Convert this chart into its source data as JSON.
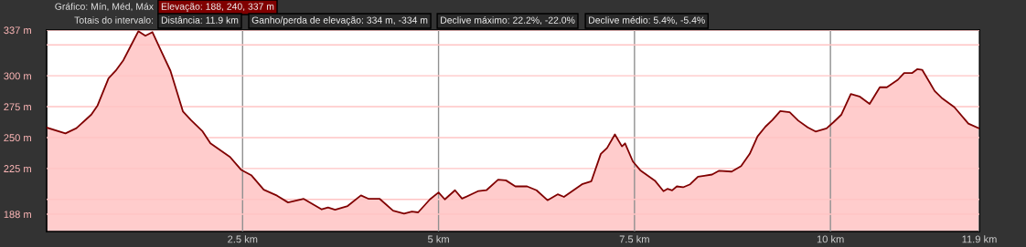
{
  "chart_data": {
    "type": "area",
    "annotations": [
      "Gráfico: Mín, Méd, Máx",
      "Elevação: 188, 240, 337 m",
      "Totais do intervalo:",
      "Distância: 11.9 km",
      "Ganho/perda de elevação: 334 m, -334 m",
      "Declive máximo: 22.2%, -22.0%",
      "Declive médio: 5.4%, -5.4%"
    ],
    "grid": true,
    "xlim": [
      0,
      11.9
    ],
    "ylim": [
      174,
      337
    ],
    "xticks": [
      {
        "value": 2.5,
        "label": "2.5 km"
      },
      {
        "value": 5,
        "label": "5 km"
      },
      {
        "value": 7.5,
        "label": "7.5 km"
      },
      {
        "value": 10,
        "label": "10 km"
      },
      {
        "value": 11.9,
        "label": "11.9 km"
      }
    ],
    "yticks": [
      {
        "value": 188,
        "label": "188 m"
      },
      {
        "value": 200,
        "label": null
      },
      {
        "value": 225,
        "label": "225 m"
      },
      {
        "value": 250,
        "label": "250 m"
      },
      {
        "value": 275,
        "label": "275 m"
      },
      {
        "value": 300,
        "label": "300 m"
      },
      {
        "value": 325,
        "label": null
      },
      {
        "value": 337,
        "label": "337 m"
      }
    ],
    "x": [
      0,
      0.24,
      0.38,
      0.57,
      0.65,
      0.79,
      0.88,
      0.98,
      1.08,
      1.17,
      1.26,
      1.35,
      1.47,
      1.58,
      1.74,
      1.84,
      1.99,
      2.09,
      2.34,
      2.48,
      2.61,
      2.77,
      2.94,
      3.08,
      3.28,
      3.51,
      3.59,
      3.68,
      3.84,
      4.01,
      4.11,
      4.25,
      4.42,
      4.56,
      4.66,
      4.74,
      4.89,
      5.0,
      5.08,
      5.21,
      5.3,
      5.51,
      5.61,
      5.76,
      5.86,
      5.98,
      6.13,
      6.25,
      6.39,
      6.52,
      6.6,
      6.83,
      6.95,
      7.07,
      7.15,
      7.25,
      7.34,
      7.38,
      7.48,
      7.58,
      7.76,
      7.87,
      7.92,
      7.98,
      8.04,
      8.12,
      8.21,
      8.31,
      8.39,
      8.49,
      8.58,
      8.74,
      8.86,
      8.97,
      9.07,
      9.17,
      9.26,
      9.36,
      9.48,
      9.59,
      9.71,
      9.81,
      9.95,
      10.04,
      10.14,
      10.26,
      10.37,
      10.5,
      10.63,
      10.72,
      10.86,
      10.94,
      11.04,
      11.11,
      11.17,
      11.33,
      11.42,
      11.58,
      11.76,
      11.89
    ],
    "series": [
      {
        "color": "#800000",
        "values": [
          258.1,
          253.4,
          257.6,
          268.6,
          276,
          298,
          304,
          312.7,
          325,
          336,
          332.4,
          335.3,
          318.8,
          304,
          271,
          264.2,
          255,
          245.3,
          234.3,
          224,
          219.6,
          207.8,
          203,
          197.5,
          200.4,
          191.9,
          193.4,
          191.6,
          194.6,
          203.2,
          200.4,
          200.4,
          190.9,
          188.5,
          190.2,
          189.5,
          200,
          205.6,
          200,
          207.4,
          200.6,
          206.8,
          207.4,
          215.9,
          215.4,
          210.5,
          210.5,
          207.4,
          199.3,
          204.1,
          202,
          212.2,
          214.7,
          236.8,
          241.6,
          252.6,
          242.9,
          245.3,
          230.6,
          223.2,
          215.2,
          206.6,
          208.5,
          207.3,
          210.5,
          209.8,
          212.2,
          218.4,
          219.1,
          220.1,
          223.2,
          222.5,
          226.9,
          236.8,
          251,
          258.8,
          264.2,
          271.5,
          270.5,
          263.7,
          258.3,
          254.9,
          257.4,
          262.5,
          268.6,
          285.3,
          283.3,
          277.2,
          290.7,
          290.7,
          296.8,
          302.2,
          302.2,
          305.4,
          304.9,
          287.7,
          282.1,
          274.7,
          261.3,
          257.6
        ]
      }
    ]
  }
}
